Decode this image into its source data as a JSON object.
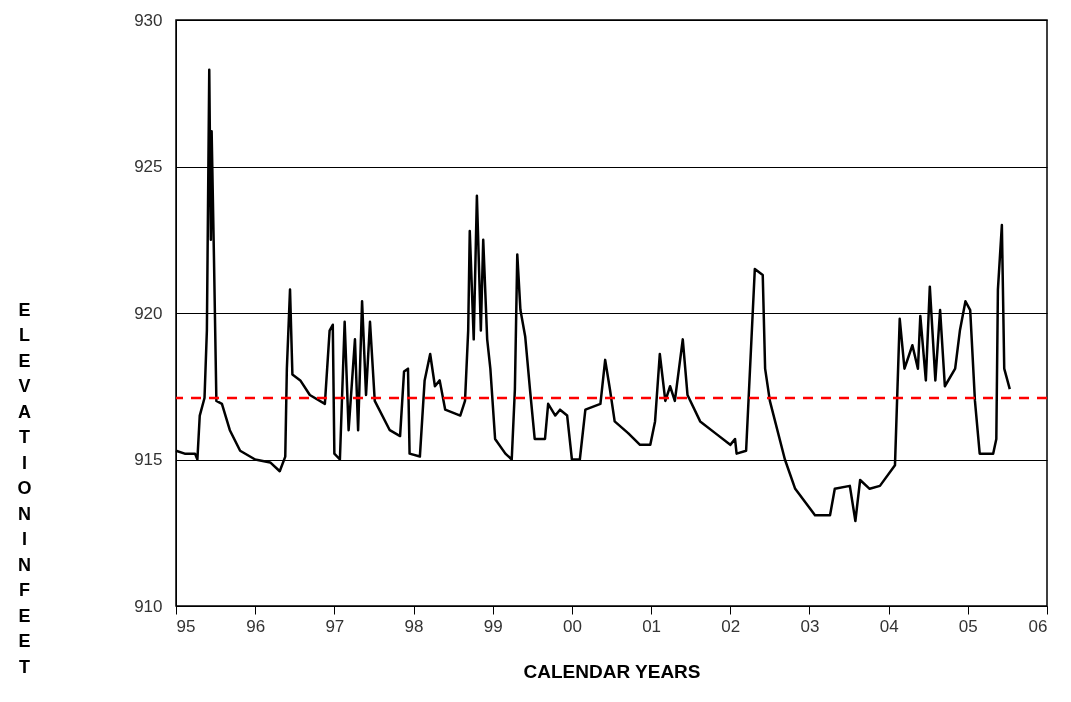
{
  "chart_data": {
    "type": "line",
    "xlabel": "CALENDAR YEARS",
    "ylabel": "ELEVATION IN FEET",
    "x": [
      1995.0,
      1995.11,
      1995.24,
      1995.27,
      1995.3,
      1995.36,
      1995.39,
      1995.42,
      1995.44,
      1995.45,
      1995.48,
      1995.51,
      1995.58,
      1995.68,
      1995.81,
      1996.0,
      1996.19,
      1996.31,
      1996.38,
      1996.4,
      1996.44,
      1996.47,
      1996.57,
      1996.69,
      1996.88,
      1996.94,
      1996.98,
      1997.0,
      1997.07,
      1997.13,
      1997.18,
      1997.26,
      1997.3,
      1997.35,
      1997.4,
      1997.45,
      1997.51,
      1997.7,
      1997.83,
      1997.88,
      1997.93,
      1997.95,
      1998.08,
      1998.14,
      1998.21,
      1998.27,
      1998.33,
      1998.4,
      1998.59,
      1998.65,
      1998.69,
      1998.71,
      1998.76,
      1998.8,
      1998.85,
      1998.88,
      1998.93,
      1998.97,
      1999.03,
      1999.16,
      1999.24,
      1999.28,
      1999.31,
      1999.35,
      1999.41,
      1999.47,
      1999.53,
      1999.66,
      1999.7,
      1999.79,
      1999.85,
      1999.94,
      2000.0,
      2000.1,
      2000.17,
      2000.36,
      2000.42,
      2000.48,
      2000.54,
      2000.71,
      2000.86,
      2000.99,
      2001.05,
      2001.11,
      2001.18,
      2001.24,
      2001.3,
      2001.4,
      2001.46,
      2001.62,
      2001.81,
      2002.0,
      2002.06,
      2002.08,
      2002.2,
      2002.31,
      2002.41,
      2002.44,
      2002.5,
      2002.69,
      2002.82,
      2003.07,
      2003.26,
      2003.32,
      2003.51,
      2003.58,
      2003.64,
      2003.76,
      2003.89,
      2004.08,
      2004.14,
      2004.2,
      2004.3,
      2004.37,
      2004.4,
      2004.47,
      2004.52,
      2004.59,
      2004.65,
      2004.71,
      2004.84,
      2004.9,
      2004.97,
      2005.03,
      2005.09,
      2005.15,
      2005.32,
      2005.36,
      2005.38,
      2005.43,
      2005.46,
      2005.53
    ],
    "series": [
      {
        "color": "#000000",
        "values": [
          915.3,
          915.2,
          915.2,
          915.0,
          916.5,
          917.1,
          919.4,
          928.3,
          922.5,
          926.2,
          921.8,
          917.0,
          916.9,
          916.0,
          915.3,
          915.0,
          914.9,
          914.6,
          915.1,
          918.1,
          920.8,
          917.9,
          917.7,
          917.2,
          916.9,
          919.4,
          919.6,
          915.2,
          915.0,
          919.7,
          916.0,
          919.1,
          916.0,
          920.4,
          917.2,
          919.7,
          917.0,
          916.0,
          915.8,
          918.0,
          918.1,
          915.2,
          915.1,
          917.7,
          918.6,
          917.5,
          917.7,
          916.7,
          916.5,
          917.0,
          919.4,
          922.8,
          919.1,
          924.0,
          919.4,
          922.5,
          919.1,
          918.1,
          915.7,
          915.2,
          915.0,
          917.4,
          922.0,
          920.1,
          919.2,
          917.4,
          915.7,
          915.7,
          916.9,
          916.5,
          916.7,
          916.5,
          915.0,
          915.0,
          916.7,
          916.9,
          918.4,
          917.4,
          916.3,
          915.9,
          915.5,
          915.5,
          916.3,
          918.6,
          917.0,
          917.5,
          917.0,
          919.1,
          917.2,
          916.3,
          915.9,
          915.5,
          915.7,
          915.2,
          915.3,
          921.5,
          921.3,
          918.1,
          917.0,
          915.0,
          914.0,
          913.1,
          913.1,
          914.0,
          914.1,
          912.9,
          914.3,
          914.0,
          914.1,
          914.8,
          919.8,
          918.1,
          918.9,
          918.1,
          919.9,
          917.7,
          920.9,
          917.7,
          920.1,
          917.5,
          918.1,
          919.4,
          920.4,
          920.1,
          917.0,
          915.2,
          915.2,
          915.7,
          920.8,
          923.0,
          918.1,
          917.4
        ]
      }
    ],
    "xlim": [
      1995,
      2006
    ],
    "xticks": [
      {
        "value": 1995,
        "label": "95"
      },
      {
        "value": 1996,
        "label": "96"
      },
      {
        "value": 1997,
        "label": "97"
      },
      {
        "value": 1998,
        "label": "98"
      },
      {
        "value": 1999,
        "label": "99"
      },
      {
        "value": 2000,
        "label": "00"
      },
      {
        "value": 2001,
        "label": "01"
      },
      {
        "value": 2002,
        "label": "02"
      },
      {
        "value": 2003,
        "label": "03"
      },
      {
        "value": 2004,
        "label": "04"
      },
      {
        "value": 2005,
        "label": "05"
      },
      {
        "value": 2006,
        "label": "06"
      }
    ],
    "ylim": [
      910,
      930
    ],
    "yticks": [
      910,
      915,
      920,
      925,
      930
    ],
    "grid": "y",
    "ref_lines": [
      {
        "axis": "y",
        "value": 917.1,
        "color": "#ff0000",
        "line_style": "dashed"
      }
    ]
  }
}
